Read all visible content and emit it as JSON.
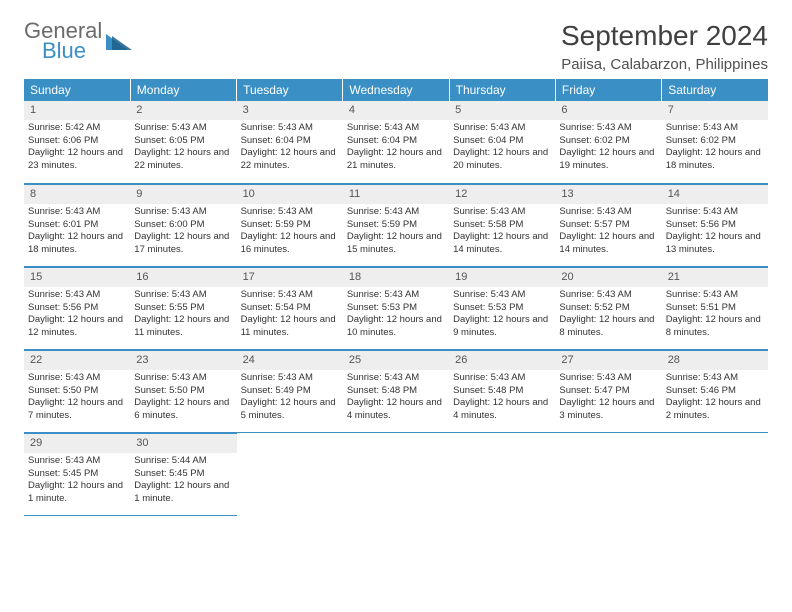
{
  "brand": {
    "line1": "General",
    "line2": "Blue"
  },
  "title": "September 2024",
  "location": "Paiisa, Calabarzon, Philippines",
  "colors": {
    "header_bg": "#3a8fc5",
    "header_text": "#ffffff",
    "daynum_bg": "#eeeeee",
    "border": "#3a8fc5",
    "body_text": "#333333",
    "logo_gray": "#6b6b6b",
    "logo_blue": "#3a8fc5"
  },
  "weekdays": [
    "Sunday",
    "Monday",
    "Tuesday",
    "Wednesday",
    "Thursday",
    "Friday",
    "Saturday"
  ],
  "weeks": [
    [
      {
        "day": 1,
        "sunrise": "5:42 AM",
        "sunset": "6:06 PM",
        "daylight": "12 hours and 23 minutes."
      },
      {
        "day": 2,
        "sunrise": "5:43 AM",
        "sunset": "6:05 PM",
        "daylight": "12 hours and 22 minutes."
      },
      {
        "day": 3,
        "sunrise": "5:43 AM",
        "sunset": "6:04 PM",
        "daylight": "12 hours and 22 minutes."
      },
      {
        "day": 4,
        "sunrise": "5:43 AM",
        "sunset": "6:04 PM",
        "daylight": "12 hours and 21 minutes."
      },
      {
        "day": 5,
        "sunrise": "5:43 AM",
        "sunset": "6:04 PM",
        "daylight": "12 hours and 20 minutes."
      },
      {
        "day": 6,
        "sunrise": "5:43 AM",
        "sunset": "6:02 PM",
        "daylight": "12 hours and 19 minutes."
      },
      {
        "day": 7,
        "sunrise": "5:43 AM",
        "sunset": "6:02 PM",
        "daylight": "12 hours and 18 minutes."
      }
    ],
    [
      {
        "day": 8,
        "sunrise": "5:43 AM",
        "sunset": "6:01 PM",
        "daylight": "12 hours and 18 minutes."
      },
      {
        "day": 9,
        "sunrise": "5:43 AM",
        "sunset": "6:00 PM",
        "daylight": "12 hours and 17 minutes."
      },
      {
        "day": 10,
        "sunrise": "5:43 AM",
        "sunset": "5:59 PM",
        "daylight": "12 hours and 16 minutes."
      },
      {
        "day": 11,
        "sunrise": "5:43 AM",
        "sunset": "5:59 PM",
        "daylight": "12 hours and 15 minutes."
      },
      {
        "day": 12,
        "sunrise": "5:43 AM",
        "sunset": "5:58 PM",
        "daylight": "12 hours and 14 minutes."
      },
      {
        "day": 13,
        "sunrise": "5:43 AM",
        "sunset": "5:57 PM",
        "daylight": "12 hours and 14 minutes."
      },
      {
        "day": 14,
        "sunrise": "5:43 AM",
        "sunset": "5:56 PM",
        "daylight": "12 hours and 13 minutes."
      }
    ],
    [
      {
        "day": 15,
        "sunrise": "5:43 AM",
        "sunset": "5:56 PM",
        "daylight": "12 hours and 12 minutes."
      },
      {
        "day": 16,
        "sunrise": "5:43 AM",
        "sunset": "5:55 PM",
        "daylight": "12 hours and 11 minutes."
      },
      {
        "day": 17,
        "sunrise": "5:43 AM",
        "sunset": "5:54 PM",
        "daylight": "12 hours and 11 minutes."
      },
      {
        "day": 18,
        "sunrise": "5:43 AM",
        "sunset": "5:53 PM",
        "daylight": "12 hours and 10 minutes."
      },
      {
        "day": 19,
        "sunrise": "5:43 AM",
        "sunset": "5:53 PM",
        "daylight": "12 hours and 9 minutes."
      },
      {
        "day": 20,
        "sunrise": "5:43 AM",
        "sunset": "5:52 PM",
        "daylight": "12 hours and 8 minutes."
      },
      {
        "day": 21,
        "sunrise": "5:43 AM",
        "sunset": "5:51 PM",
        "daylight": "12 hours and 8 minutes."
      }
    ],
    [
      {
        "day": 22,
        "sunrise": "5:43 AM",
        "sunset": "5:50 PM",
        "daylight": "12 hours and 7 minutes."
      },
      {
        "day": 23,
        "sunrise": "5:43 AM",
        "sunset": "5:50 PM",
        "daylight": "12 hours and 6 minutes."
      },
      {
        "day": 24,
        "sunrise": "5:43 AM",
        "sunset": "5:49 PM",
        "daylight": "12 hours and 5 minutes."
      },
      {
        "day": 25,
        "sunrise": "5:43 AM",
        "sunset": "5:48 PM",
        "daylight": "12 hours and 4 minutes."
      },
      {
        "day": 26,
        "sunrise": "5:43 AM",
        "sunset": "5:48 PM",
        "daylight": "12 hours and 4 minutes."
      },
      {
        "day": 27,
        "sunrise": "5:43 AM",
        "sunset": "5:47 PM",
        "daylight": "12 hours and 3 minutes."
      },
      {
        "day": 28,
        "sunrise": "5:43 AM",
        "sunset": "5:46 PM",
        "daylight": "12 hours and 2 minutes."
      }
    ],
    [
      {
        "day": 29,
        "sunrise": "5:43 AM",
        "sunset": "5:45 PM",
        "daylight": "12 hours and 1 minute."
      },
      {
        "day": 30,
        "sunrise": "5:44 AM",
        "sunset": "5:45 PM",
        "daylight": "12 hours and 1 minute."
      },
      null,
      null,
      null,
      null,
      null
    ]
  ],
  "labels": {
    "sunrise": "Sunrise:",
    "sunset": "Sunset:",
    "daylight": "Daylight:"
  }
}
